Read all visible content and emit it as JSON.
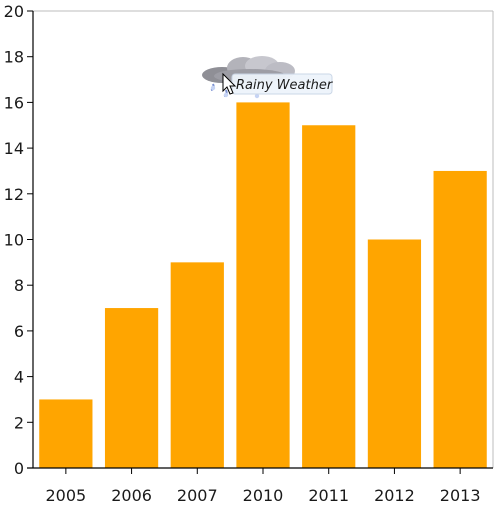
{
  "chart_data": {
    "type": "bar",
    "categories": [
      "2005",
      "2006",
      "2007",
      "2010",
      "2011",
      "2012",
      "2013"
    ],
    "values": [
      3,
      7,
      9,
      16,
      15,
      10,
      13
    ],
    "title": "",
    "xlabel": "",
    "ylabel": "",
    "ylim": [
      0,
      20
    ],
    "yticks": [
      0,
      2,
      4,
      6,
      8,
      10,
      12,
      14,
      16,
      18,
      20
    ],
    "grid": false,
    "bar_color": "#ffa500"
  },
  "tooltip": {
    "text": "Rainy Weather",
    "icon": "rain-cloud-icon",
    "attached_to_category": "2010"
  },
  "cursor": {
    "icon": "mouse-pointer-icon"
  }
}
